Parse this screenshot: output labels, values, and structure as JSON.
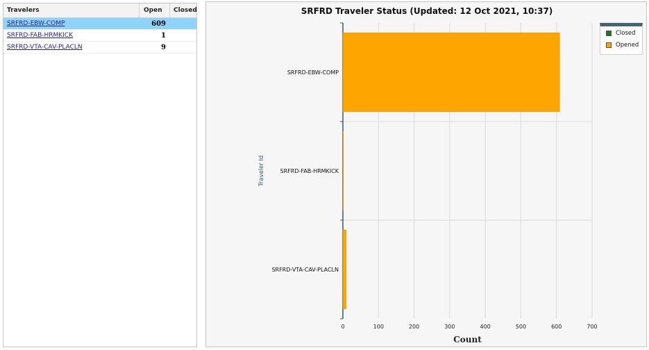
{
  "table": {
    "headers": {
      "name": "Travelers",
      "open": "Open",
      "closed": "Closed"
    },
    "rows": [
      {
        "name": "SRFRD-EBW-COMP",
        "open": "609",
        "closed": "",
        "selected": true
      },
      {
        "name": "SRFRD-FAB-HRMKICK",
        "open": "1",
        "closed": "",
        "selected": false
      },
      {
        "name": "SRFRD-VTA-CAV-PLACLN",
        "open": "9",
        "closed": "",
        "selected": false
      }
    ]
  },
  "chart": {
    "title": "SRFRD Traveler Status (Updated: 12 Oct 2021, 10:37)",
    "legend": {
      "closed": "Closed",
      "opened": "Opened"
    }
  },
  "colors": {
    "opened": "#ffa500",
    "closed": "#1a7a1a",
    "selected_row": "#8fd3f9",
    "legend_bar": "#466371"
  },
  "chart_data": {
    "type": "bar",
    "orientation": "horizontal",
    "categories": [
      "SRFRD-EBW-COMP",
      "SRFRD-FAB-HRMKICK",
      "SRFRD-VTA-CAV-PLACLN"
    ],
    "series": [
      {
        "name": "Closed",
        "values": [
          0,
          0,
          0
        ]
      },
      {
        "name": "Opened",
        "values": [
          609,
          1,
          9
        ]
      }
    ],
    "xlabel": "Count",
    "ylabel": "Traveler Id",
    "xlim": [
      0,
      700
    ],
    "xticks": [
      0,
      100,
      200,
      300,
      400,
      500,
      600,
      700
    ],
    "grid": true,
    "legend_position": "top-right"
  }
}
